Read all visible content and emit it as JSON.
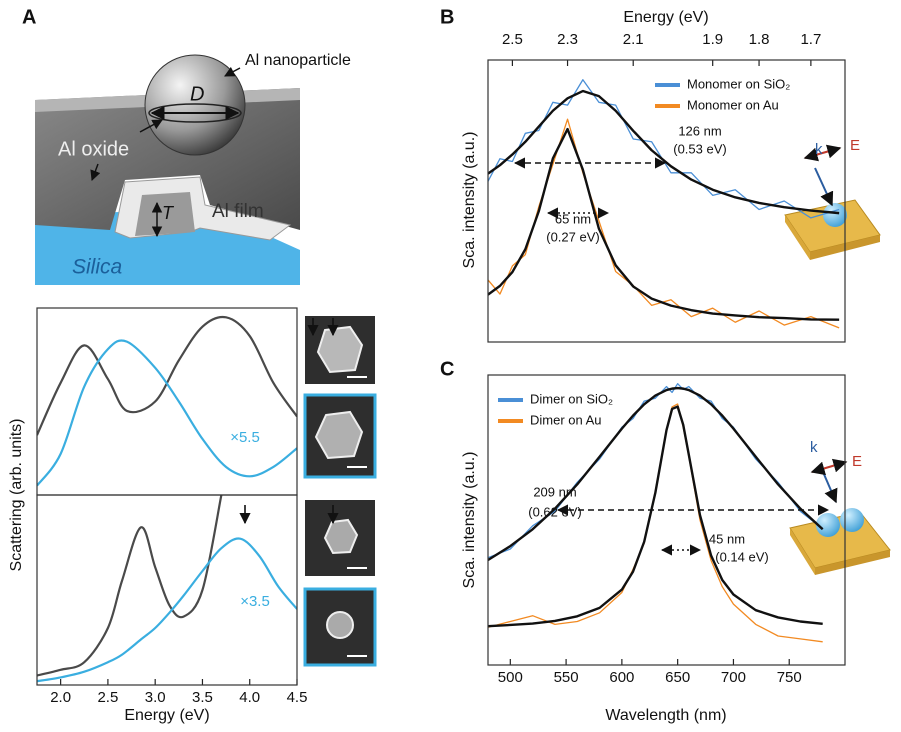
{
  "panel_labels": [
    "A",
    "B",
    "C"
  ],
  "diagram": {
    "particle_label": "Al nanoparticle",
    "diameter": "D",
    "oxide_label": "Al oxide",
    "thickness": "T",
    "film_label": "Al film",
    "substrate_label": "Silica"
  },
  "chart_data": [
    {
      "type": "line",
      "xlim": [
        1.75,
        4.5
      ],
      "ylim": [
        0,
        1
      ],
      "x": [
        1.75,
        2.0,
        2.25,
        2.5,
        2.7,
        3.0,
        3.25,
        3.5,
        3.75,
        4.0,
        4.25,
        4.5
      ],
      "series": [
        {
          "color": "#4a4a4a",
          "values": [
            0.32,
            0.6,
            0.8,
            0.62,
            0.45,
            0.5,
            0.72,
            0.9,
            0.95,
            0.85,
            0.6,
            0.42
          ]
        },
        {
          "color": "#3aaee0",
          "values": [
            0.05,
            0.22,
            0.58,
            0.78,
            0.82,
            0.68,
            0.5,
            0.3,
            0.15,
            0.1,
            0.15,
            0.25
          ]
        }
      ],
      "annotations": [
        "×5.5"
      ]
    },
    {
      "type": "line",
      "xlabel": "Energy (eV)",
      "ylabel": "Scattering (arb. units)",
      "xlim": [
        1.75,
        4.5
      ],
      "ylim": [
        0,
        1
      ],
      "xticks": [
        {
          "value": 2,
          "label": "2.0"
        },
        {
          "value": 2.5,
          "label": "2.5"
        },
        {
          "value": 3,
          "label": "3.0"
        },
        {
          "value": 3.5,
          "label": "3.5"
        },
        {
          "value": 4,
          "label": "4.0"
        },
        {
          "value": 4.5,
          "label": "4.5"
        }
      ],
      "x": [
        1.75,
        2.0,
        2.25,
        2.5,
        2.65,
        2.85,
        3.0,
        3.15,
        3.3,
        3.5,
        3.7,
        3.9,
        4.1,
        4.3,
        4.5
      ],
      "series": [
        {
          "color": "#4a4a4a",
          "values": [
            0.05,
            0.08,
            0.12,
            0.3,
            0.55,
            0.83,
            0.62,
            0.42,
            0.36,
            0.5,
            1.0,
            null,
            null,
            null,
            null
          ]
        },
        {
          "color": "#3aaee0",
          "values": [
            0.02,
            0.04,
            0.07,
            0.12,
            0.16,
            0.24,
            0.3,
            0.38,
            0.47,
            0.6,
            0.72,
            0.77,
            0.68,
            0.52,
            0.4
          ]
        }
      ],
      "annotations": [
        "×3.5"
      ]
    },
    {
      "type": "line",
      "xlabel": "Energy (eV)",
      "ylabel": "Sca. intensity (a.u.)",
      "xscale": "reciprocal",
      "xlim": [
        2.6,
        1.64
      ],
      "ylim": [
        0,
        1
      ],
      "xticks": [
        2.5,
        2.3,
        2.1,
        1.9,
        1.8,
        1.7
      ],
      "legend": "upper right",
      "x": [
        2.6,
        2.55,
        2.5,
        2.45,
        2.4,
        2.35,
        2.3,
        2.25,
        2.2,
        2.15,
        2.1,
        2.05,
        2.0,
        1.95,
        1.9,
        1.85,
        1.8,
        1.75,
        1.7,
        1.65
      ],
      "series": [
        {
          "name": "Monomer on SiO₂",
          "color": "#4a8fd6",
          "values": [
            0.57,
            0.65,
            0.64,
            0.74,
            0.75,
            0.85,
            0.84,
            0.93,
            0.85,
            0.84,
            0.72,
            0.71,
            0.6,
            0.6,
            0.52,
            0.54,
            0.47,
            0.5,
            0.44,
            0.47
          ]
        },
        {
          "name": "Monomer on Au",
          "color": "#f28a22",
          "values": [
            0.22,
            0.17,
            0.27,
            0.31,
            0.48,
            0.63,
            0.79,
            0.6,
            0.43,
            0.25,
            0.2,
            0.13,
            0.15,
            0.09,
            0.12,
            0.07,
            0.11,
            0.06,
            0.09,
            0.05
          ]
        },
        {
          "color": "#111111",
          "values": [
            0.597,
            0.627,
            0.665,
            0.71,
            0.764,
            0.82,
            0.864,
            0.89,
            0.872,
            0.82,
            0.749,
            0.68,
            0.623,
            0.576,
            0.54,
            0.513,
            0.493,
            0.478,
            0.466,
            0.457
          ]
        },
        {
          "color": "#111111",
          "values": [
            0.168,
            0.199,
            0.248,
            0.329,
            0.464,
            0.651,
            0.755,
            0.611,
            0.402,
            0.272,
            0.197,
            0.154,
            0.129,
            0.113,
            0.101,
            0.094,
            0.088,
            0.085,
            0.08,
            0.079
          ]
        }
      ],
      "annotations": [
        "126 nm",
        "(0.53 eV)",
        "65 nm",
        "(0.27 eV)"
      ],
      "inset_labels": [
        "k",
        "E"
      ]
    },
    {
      "type": "line",
      "xlabel": "Wavelength (nm)",
      "ylabel": "Sca. intensity (a.u.)",
      "xlim": [
        480,
        800
      ],
      "ylim": [
        0,
        1
      ],
      "xticks": [
        500,
        550,
        600,
        650,
        700,
        750
      ],
      "legend": "upper left",
      "x": [
        480,
        500,
        520,
        540,
        560,
        580,
        600,
        610,
        620,
        630,
        640,
        645,
        650,
        655,
        660,
        670,
        680,
        690,
        700,
        720,
        740,
        760,
        780
      ],
      "series": [
        {
          "name": "Dimer on SiO₂",
          "color": "#4a8fd6",
          "values": [
            0.37,
            0.4,
            0.48,
            0.53,
            0.63,
            0.71,
            0.82,
            0.85,
            0.91,
            0.92,
            0.96,
            0.94,
            0.97,
            0.95,
            0.96,
            0.92,
            0.91,
            0.85,
            0.82,
            0.71,
            0.63,
            0.53,
            0.47
          ]
        },
        {
          "name": "Dimer on Au",
          "color": "#f28a22",
          "values": [
            0.13,
            0.15,
            0.17,
            0.14,
            0.15,
            0.18,
            0.25,
            0.33,
            0.42,
            0.6,
            0.81,
            0.89,
            0.9,
            0.82,
            0.72,
            0.5,
            0.36,
            0.27,
            0.21,
            0.14,
            0.1,
            0.09,
            0.08
          ]
        },
        {
          "color": "#111111",
          "values": [
            0.362,
            0.41,
            0.468,
            0.539,
            0.623,
            0.718,
            0.815,
            0.86,
            0.899,
            0.929,
            0.948,
            0.953,
            0.955,
            0.953,
            0.948,
            0.929,
            0.899,
            0.86,
            0.815,
            0.718,
            0.623,
            0.539,
            0.468
          ]
        },
        {
          "color": "#111111",
          "values": [
            0.134,
            0.138,
            0.143,
            0.152,
            0.168,
            0.197,
            0.26,
            0.322,
            0.425,
            0.594,
            0.81,
            0.883,
            0.891,
            0.828,
            0.725,
            0.517,
            0.377,
            0.293,
            0.243,
            0.189,
            0.164,
            0.15,
            0.142
          ]
        }
      ],
      "annotations": [
        "209 nm",
        "(0.62 eV)",
        "45 nm",
        "(0.14 eV)"
      ],
      "inset_labels": [
        "k",
        "E"
      ]
    }
  ]
}
